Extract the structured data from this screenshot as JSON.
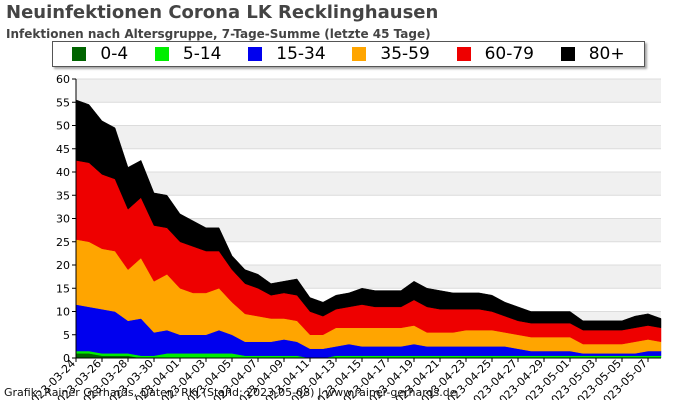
{
  "header": {
    "title": "Neuinfektionen Corona LK Recklinghausen",
    "subtitle": "Infektionen nach Altersgruppe, 7-Tage-Summe (letzte 45 Tage)"
  },
  "credit": "Grafik: Rainer Gerhards, Daten: RKI (Stand: 2023-05-08) | www.rainer-gerhards.de",
  "chart_data": {
    "type": "area",
    "stacked": true,
    "title": "Neuinfektionen Corona LK Recklinghausen",
    "subtitle": "Infektionen nach Altersgruppe, 7-Tage-Summe (letzte 45 Tage)",
    "xlabel": "",
    "ylabel": "",
    "ylim": [
      0,
      60
    ],
    "yticks": [
      0,
      5,
      10,
      15,
      20,
      25,
      30,
      35,
      40,
      45,
      50,
      55,
      60
    ],
    "grid": true,
    "legend_position": "top",
    "x": [
      "2023-03-24",
      "2023-03-25",
      "2023-03-26",
      "2023-03-27",
      "2023-03-28",
      "2023-03-29",
      "2023-03-30",
      "2023-03-31",
      "2023-04-01",
      "2023-04-02",
      "2023-04-03",
      "2023-04-04",
      "2023-04-05",
      "2023-04-06",
      "2023-04-07",
      "2023-04-08",
      "2023-04-09",
      "2023-04-10",
      "2023-04-11",
      "2023-04-12",
      "2023-04-13",
      "2023-04-14",
      "2023-04-15",
      "2023-04-16",
      "2023-04-17",
      "2023-04-18",
      "2023-04-19",
      "2023-04-20",
      "2023-04-21",
      "2023-04-22",
      "2023-04-23",
      "2023-04-24",
      "2023-04-25",
      "2023-04-26",
      "2023-04-27",
      "2023-04-28",
      "2023-04-29",
      "2023-04-30",
      "2023-05-01",
      "2023-05-02",
      "2023-05-03",
      "2023-05-04",
      "2023-05-05",
      "2023-05-06",
      "2023-05-07",
      "2023-05-08"
    ],
    "x_tick_labels": [
      "2023-03-24",
      "2023-03-26",
      "2023-03-28",
      "2023-03-30",
      "2023-04-01",
      "2023-04-03",
      "2023-04-05",
      "2023-04-07",
      "2023-04-09",
      "2023-04-11",
      "2023-04-13",
      "2023-04-15",
      "2023-04-17",
      "2023-04-19",
      "2023-04-21",
      "2023-04-23",
      "2023-04-25",
      "2023-04-27",
      "2023-04-29",
      "2023-05-01",
      "2023-05-03",
      "2023-05-05",
      "2023-05-07"
    ],
    "series": [
      {
        "name": "0-4",
        "color": "#006400",
        "values": [
          1,
          1,
          0.5,
          0.5,
          0.5,
          0,
          0,
          0,
          0,
          0,
          0,
          0,
          0,
          0,
          0,
          0,
          0,
          0,
          0,
          0,
          0,
          0,
          0,
          0,
          0,
          0,
          0,
          0,
          0,
          0,
          0,
          0,
          0,
          0,
          0,
          0,
          0,
          0,
          0,
          0,
          0,
          0,
          0,
          0,
          0,
          0
        ]
      },
      {
        "name": "5-14",
        "color": "#00ee00",
        "values": [
          0.5,
          0.5,
          0.5,
          0.5,
          0.5,
          0.5,
          0.5,
          1,
          1,
          1,
          1,
          1,
          1,
          0.5,
          0.5,
          0.5,
          0.5,
          0.5,
          0,
          0,
          0.5,
          0.5,
          0.5,
          0.5,
          0.5,
          0.5,
          0.5,
          0.5,
          0.5,
          0.5,
          0.5,
          0.5,
          0.5,
          0.5,
          0.5,
          0.5,
          0.5,
          0.5,
          0.5,
          0.5,
          0.5,
          0.5,
          0.5,
          0.5,
          0.5,
          0.5
        ]
      },
      {
        "name": "15-34",
        "color": "#0000ee",
        "values": [
          10,
          9.5,
          9.5,
          9,
          7,
          8,
          5,
          5,
          4,
          4,
          4,
          5,
          4,
          3,
          3,
          3,
          3.5,
          3,
          2,
          2,
          2,
          2.5,
          2,
          2,
          2,
          2,
          2.5,
          2,
          2,
          2,
          2,
          2,
          2,
          2,
          1.5,
          1,
          1,
          1,
          1,
          0.5,
          0.5,
          0.5,
          0.5,
          0.5,
          1,
          1
        ]
      },
      {
        "name": "35-59",
        "color": "#ffa500",
        "values": [
          14,
          14,
          13,
          13,
          11,
          13,
          11,
          12,
          10,
          9,
          9,
          9,
          7,
          6,
          5.5,
          5,
          4.5,
          4.5,
          3,
          3,
          4,
          3.5,
          4,
          4,
          4,
          4,
          4,
          3,
          3,
          3,
          3.5,
          3.5,
          3.5,
          3,
          3,
          3,
          3,
          3,
          3,
          2,
          2,
          2,
          2,
          2.5,
          2.5,
          2
        ]
      },
      {
        "name": "60-79",
        "color": "#ee0000",
        "values": [
          17,
          17,
          16,
          15.5,
          13,
          13,
          12,
          10,
          10,
          10,
          9,
          8,
          7,
          6.5,
          6,
          5,
          5.5,
          5.5,
          5,
          4,
          4,
          4.5,
          5,
          4.5,
          4.5,
          4.5,
          5.5,
          5.5,
          5,
          5,
          4.5,
          4.5,
          4,
          3.5,
          3,
          3,
          3,
          3,
          3,
          3,
          3,
          3,
          3,
          3,
          3,
          3
        ]
      },
      {
        "name": "80+",
        "color": "#000000",
        "values": [
          13,
          12.5,
          11.5,
          11,
          9,
          8,
          7,
          7,
          6,
          5.5,
          5,
          5,
          3,
          3,
          3,
          2.5,
          2.5,
          3.5,
          3,
          3,
          3,
          3,
          3.5,
          3.5,
          3.5,
          3.5,
          4,
          4,
          4,
          3.5,
          3.5,
          3.5,
          3.5,
          3,
          3,
          2.5,
          2.5,
          2.5,
          2.5,
          2,
          2,
          2,
          2,
          2.5,
          2.5,
          2
        ]
      }
    ]
  }
}
